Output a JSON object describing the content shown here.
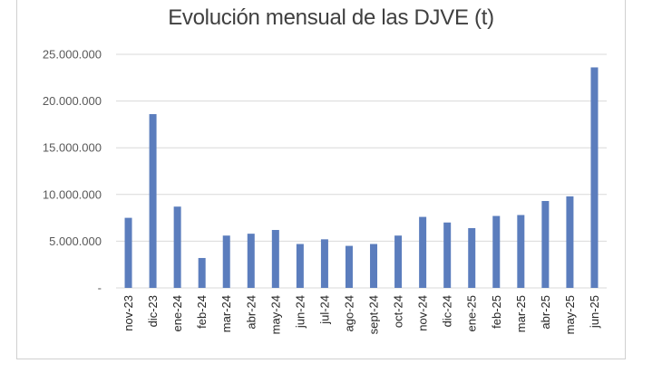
{
  "chart_data": {
    "type": "bar",
    "title": "Evolución mensual de las DJVE (t)",
    "xlabel": "",
    "ylabel": "",
    "categories": [
      "nov-23",
      "dic-23",
      "ene-24",
      "feb-24",
      "mar-24",
      "abr-24",
      "may-24",
      "jun-24",
      "jul-24",
      "ago-24",
      "sept-24",
      "oct-24",
      "nov-24",
      "dic-24",
      "ene-25",
      "feb-25",
      "mar-25",
      "abr-25",
      "may-25",
      "jun-25"
    ],
    "values": [
      7500000,
      18600000,
      8700000,
      3200000,
      5600000,
      5800000,
      6200000,
      4700000,
      5200000,
      4500000,
      4700000,
      5600000,
      7600000,
      7000000,
      6400000,
      7700000,
      7800000,
      9300000,
      9800000,
      23600000
    ],
    "ylim": [
      0,
      25000000
    ],
    "yticks": [
      0,
      5000000,
      10000000,
      15000000,
      20000000,
      25000000
    ],
    "ytick_labels": [
      "-",
      "5.000.000",
      "10.000.000",
      "15.000.000",
      "20.000.000",
      "25.000.000"
    ],
    "grid": true,
    "legend": "none",
    "bar_color": "#5b7dbd",
    "grid_color": "#d9d9d9"
  }
}
